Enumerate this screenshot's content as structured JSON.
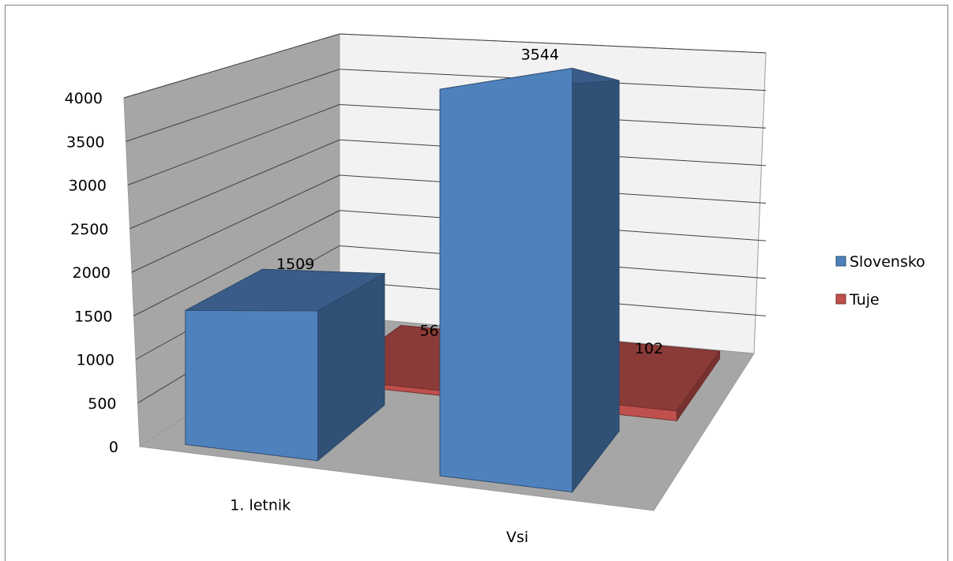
{
  "chart_data": {
    "type": "bar",
    "categories": [
      "1. letnik",
      "Vsi"
    ],
    "series": [
      {
        "name": "Slovensko",
        "values": [
          1509,
          3544
        ],
        "color": "#4f81bd"
      },
      {
        "name": "Tuje",
        "values": [
          56,
          102
        ],
        "color": "#c0504d"
      }
    ],
    "y_ticks": [
      "0",
      "500",
      "1000",
      "1500",
      "2000",
      "2500",
      "3000",
      "3500",
      "4000"
    ],
    "ylim": [
      0,
      4000
    ],
    "grid": true,
    "legend_position": "right",
    "style": "3d-column"
  }
}
